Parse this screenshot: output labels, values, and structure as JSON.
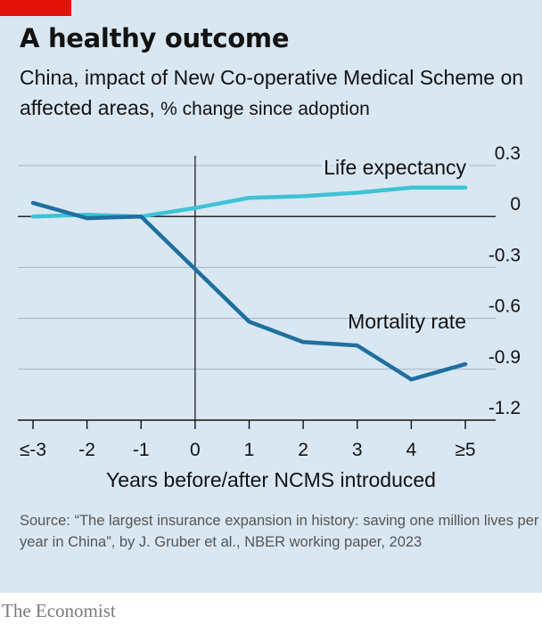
{
  "header": {
    "title": "A healthy outcome",
    "subtitle_main": "China, impact of New Co-operative Medical Scheme on affected areas,",
    "subtitle_unit": "% change since adoption"
  },
  "footer": {
    "source": "Source: “The largest insurance expansion in history: saving one million lives per year in China”, by J. Gruber et al., NBER working paper, 2023",
    "brand": "The Economist"
  },
  "colors": {
    "background": "#d9e7f2",
    "life_expectancy": "#3ec3d5",
    "mortality_rate": "#1f6fa0",
    "accent": "#e3120b"
  },
  "chart_data": {
    "type": "line",
    "title": "A healthy outcome",
    "subtitle": "China, impact of New Co-operative Medical Scheme on affected areas, % change since adoption",
    "xlabel": "Years before/after NCMS introduced",
    "ylabel": "",
    "categories": [
      "≤-3",
      "-2",
      "-1",
      "0",
      "1",
      "2",
      "3",
      "4",
      "≥5"
    ],
    "x": [
      -3,
      -2,
      -1,
      0,
      1,
      2,
      3,
      4,
      5
    ],
    "yticks": [
      0.3,
      0,
      -0.3,
      -0.6,
      -0.9,
      -1.2
    ],
    "ytick_labels": [
      "0.3",
      "0",
      "-0.3",
      "-0.6",
      "-0.9",
      "-1.2"
    ],
    "ylim": [
      -1.2,
      0.3
    ],
    "xlim": [
      -3,
      5
    ],
    "grid": true,
    "reference_line_x": 0,
    "series": [
      {
        "name": "Life expectancy",
        "values": [
          0.0,
          0.01,
          0.0,
          0.05,
          0.11,
          0.12,
          0.14,
          0.17,
          0.17
        ]
      },
      {
        "name": "Mortality rate",
        "values": [
          0.08,
          -0.01,
          0.0,
          -0.31,
          -0.62,
          -0.74,
          -0.76,
          -0.96,
          -0.87
        ]
      }
    ]
  }
}
